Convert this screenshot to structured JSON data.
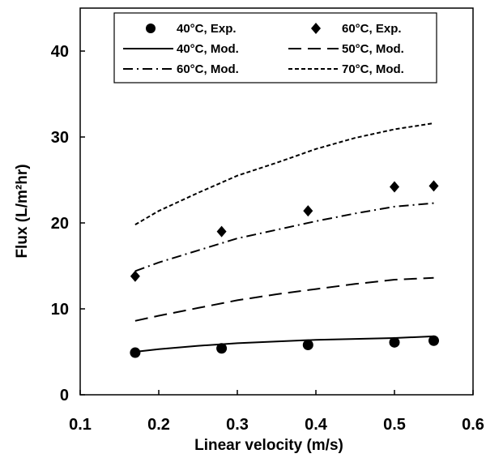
{
  "chart_data": {
    "type": "line",
    "title": "",
    "xlabel": "Linear velocity (m/s)",
    "ylabel": "Flux (L/m²hr)",
    "xlim": [
      0.1,
      0.6
    ],
    "ylim": [
      0,
      45
    ],
    "xticks": [
      0.1,
      0.2,
      0.3,
      0.4,
      0.5,
      0.6
    ],
    "xtick_labels": [
      "0.1",
      "0.2",
      "0.3",
      "0.4",
      "0.5",
      "0.6"
    ],
    "yticks": [
      0,
      10,
      20,
      30,
      40
    ],
    "ytick_labels": [
      "0",
      "10",
      "20",
      "30",
      "40"
    ],
    "grid": false,
    "legend_position": "top",
    "series": [
      {
        "name": "40°C, Exp.",
        "kind": "scatter",
        "marker": "circle",
        "x": [
          0.17,
          0.28,
          0.39,
          0.5,
          0.55
        ],
        "y": [
          4.9,
          5.4,
          5.8,
          6.1,
          6.3
        ]
      },
      {
        "name": "60°C, Exp.",
        "kind": "scatter",
        "marker": "diamond",
        "x": [
          0.17,
          0.28,
          0.39,
          0.5,
          0.55
        ],
        "y": [
          13.8,
          19.0,
          21.4,
          24.2,
          24.3
        ]
      },
      {
        "name": "40°C, Mod.",
        "kind": "line",
        "dash": "solid",
        "x": [
          0.17,
          0.2,
          0.25,
          0.3,
          0.35,
          0.4,
          0.45,
          0.5,
          0.55
        ],
        "y": [
          5.0,
          5.3,
          5.7,
          6.0,
          6.2,
          6.4,
          6.5,
          6.6,
          6.8
        ]
      },
      {
        "name": "50°C, Mod.",
        "kind": "line",
        "dash": "long-dash",
        "x": [
          0.17,
          0.2,
          0.25,
          0.3,
          0.35,
          0.4,
          0.45,
          0.5,
          0.55
        ],
        "y": [
          8.6,
          9.2,
          10.1,
          11.0,
          11.7,
          12.3,
          12.9,
          13.4,
          13.6
        ]
      },
      {
        "name": "60°C, Mod.",
        "kind": "line",
        "dash": "dash-dot",
        "x": [
          0.17,
          0.2,
          0.25,
          0.3,
          0.35,
          0.4,
          0.45,
          0.5,
          0.55
        ],
        "y": [
          14.4,
          15.4,
          16.8,
          18.2,
          19.2,
          20.2,
          21.1,
          21.9,
          22.3
        ]
      },
      {
        "name": "70°C, Mod.",
        "kind": "line",
        "dash": "short-dash",
        "x": [
          0.17,
          0.2,
          0.25,
          0.3,
          0.35,
          0.4,
          0.45,
          0.5,
          0.55
        ],
        "y": [
          19.8,
          21.4,
          23.5,
          25.5,
          27.0,
          28.6,
          29.9,
          30.9,
          31.6
        ]
      }
    ]
  }
}
